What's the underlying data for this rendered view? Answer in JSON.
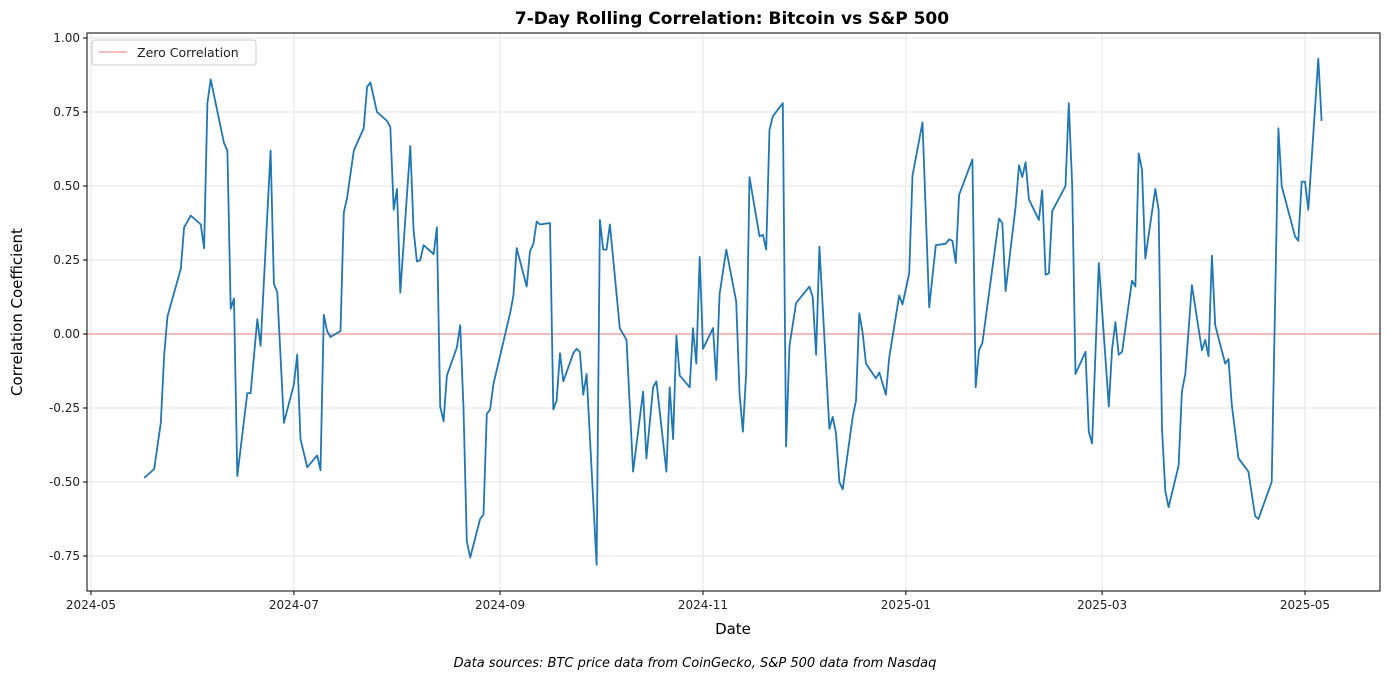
{
  "chart_data": {
    "type": "line",
    "title": "7-Day Rolling Correlation: Bitcoin vs S&P 500",
    "xlabel": "Date",
    "ylabel": "Correlation Coefficient",
    "footnote": "Data sources: BTC price data from CoinGecko, S&P 500 data from Nasdaq",
    "xlim": [
      "2024-04-29",
      "2025-05-24"
    ],
    "ylim": [
      -0.87,
      1.01
    ],
    "grid": true,
    "legend_position": "top-left",
    "x_ticks": [
      "2024-05",
      "2024-07",
      "2024-09",
      "2024-11",
      "2025-01",
      "2025-03",
      "2025-05"
    ],
    "y_ticks": [
      "1.00",
      "0.75",
      "0.50",
      "0.25",
      "0.00",
      "-0.25",
      "-0.50",
      "-0.75"
    ],
    "reference_line": {
      "name": "Zero Correlation",
      "y": 0,
      "color": "#f4a6a6"
    },
    "series": [
      {
        "color": "#1f77b4",
        "points": [
          [
            "2024-05-17",
            -0.486
          ],
          [
            "2024-05-20",
            -0.456
          ],
          [
            "2024-05-22",
            -0.3
          ],
          [
            "2024-05-23",
            -0.07
          ],
          [
            "2024-05-24",
            0.06
          ],
          [
            "2024-05-28",
            0.22
          ],
          [
            "2024-05-29",
            0.36
          ],
          [
            "2024-05-31",
            0.4
          ],
          [
            "2024-06-03",
            0.37
          ],
          [
            "2024-06-04",
            0.29
          ],
          [
            "2024-06-05",
            0.78
          ],
          [
            "2024-06-06",
            0.86
          ],
          [
            "2024-06-10",
            0.645
          ],
          [
            "2024-06-11",
            0.62
          ],
          [
            "2024-06-12",
            0.085
          ],
          [
            "2024-06-13",
            0.12
          ],
          [
            "2024-06-14",
            -0.48
          ],
          [
            "2024-06-17",
            -0.2
          ],
          [
            "2024-06-18",
            -0.2
          ],
          [
            "2024-06-20",
            0.05
          ],
          [
            "2024-06-21",
            -0.04
          ],
          [
            "2024-06-24",
            0.62
          ],
          [
            "2024-06-25",
            0.17
          ],
          [
            "2024-06-26",
            0.14
          ],
          [
            "2024-06-28",
            -0.3
          ],
          [
            "2024-07-01",
            -0.17
          ],
          [
            "2024-07-02",
            -0.07
          ],
          [
            "2024-07-03",
            -0.355
          ],
          [
            "2024-07-05",
            -0.45
          ],
          [
            "2024-07-08",
            -0.41
          ],
          [
            "2024-07-09",
            -0.46
          ],
          [
            "2024-07-10",
            0.065
          ],
          [
            "2024-07-11",
            0.01
          ],
          [
            "2024-07-12",
            -0.01
          ],
          [
            "2024-07-15",
            0.01
          ],
          [
            "2024-07-16",
            0.41
          ],
          [
            "2024-07-17",
            0.46
          ],
          [
            "2024-07-19",
            0.62
          ],
          [
            "2024-07-22",
            0.695
          ],
          [
            "2024-07-23",
            0.835
          ],
          [
            "2024-07-24",
            0.85
          ],
          [
            "2024-07-26",
            0.75
          ],
          [
            "2024-07-29",
            0.72
          ],
          [
            "2024-07-30",
            0.7
          ],
          [
            "2024-07-31",
            0.42
          ],
          [
            "2024-08-01",
            0.49
          ],
          [
            "2024-08-02",
            0.14
          ],
          [
            "2024-08-05",
            0.635
          ],
          [
            "2024-08-06",
            0.35
          ],
          [
            "2024-08-07",
            0.245
          ],
          [
            "2024-08-08",
            0.25
          ],
          [
            "2024-08-09",
            0.3
          ],
          [
            "2024-08-12",
            0.27
          ],
          [
            "2024-08-13",
            0.36
          ],
          [
            "2024-08-14",
            -0.245
          ],
          [
            "2024-08-15",
            -0.295
          ],
          [
            "2024-08-16",
            -0.14
          ],
          [
            "2024-08-19",
            -0.045
          ],
          [
            "2024-08-20",
            0.03
          ],
          [
            "2024-08-21",
            -0.25
          ],
          [
            "2024-08-22",
            -0.7
          ],
          [
            "2024-08-23",
            -0.755
          ],
          [
            "2024-08-26",
            -0.625
          ],
          [
            "2024-08-27",
            -0.61
          ],
          [
            "2024-08-28",
            -0.27
          ],
          [
            "2024-08-29",
            -0.255
          ],
          [
            "2024-08-30",
            -0.17
          ],
          [
            "2024-09-04",
            0.07
          ],
          [
            "2024-09-05",
            0.13
          ],
          [
            "2024-09-06",
            0.29
          ],
          [
            "2024-09-09",
            0.16
          ],
          [
            "2024-09-10",
            0.28
          ],
          [
            "2024-09-11",
            0.305
          ],
          [
            "2024-09-12",
            0.38
          ],
          [
            "2024-09-13",
            0.37
          ],
          [
            "2024-09-16",
            0.375
          ],
          [
            "2024-09-17",
            -0.255
          ],
          [
            "2024-09-18",
            -0.225
          ],
          [
            "2024-09-19",
            -0.065
          ],
          [
            "2024-09-20",
            -0.16
          ],
          [
            "2024-09-23",
            -0.065
          ],
          [
            "2024-09-24",
            -0.05
          ],
          [
            "2024-09-25",
            -0.06
          ],
          [
            "2024-09-26",
            -0.205
          ],
          [
            "2024-09-27",
            -0.135
          ],
          [
            "2024-09-30",
            -0.78
          ],
          [
            "2024-10-01",
            0.385
          ],
          [
            "2024-10-02",
            0.285
          ],
          [
            "2024-10-03",
            0.285
          ],
          [
            "2024-10-04",
            0.37
          ],
          [
            "2024-10-07",
            0.02
          ],
          [
            "2024-10-09",
            -0.02
          ],
          [
            "2024-10-11",
            -0.465
          ],
          [
            "2024-10-14",
            -0.195
          ],
          [
            "2024-10-15",
            -0.42
          ],
          [
            "2024-10-17",
            -0.18
          ],
          [
            "2024-10-18",
            -0.16
          ],
          [
            "2024-10-21",
            -0.465
          ],
          [
            "2024-10-22",
            -0.18
          ],
          [
            "2024-10-23",
            -0.355
          ],
          [
            "2024-10-24",
            -0.005
          ],
          [
            "2024-10-25",
            -0.14
          ],
          [
            "2024-10-28",
            -0.18
          ],
          [
            "2024-10-29",
            0.02
          ],
          [
            "2024-10-30",
            -0.1
          ],
          [
            "2024-10-31",
            0.26
          ],
          [
            "2024-11-01",
            -0.05
          ],
          [
            "2024-11-04",
            0.02
          ],
          [
            "2024-11-05",
            -0.155
          ],
          [
            "2024-11-06",
            0.135
          ],
          [
            "2024-11-08",
            0.285
          ],
          [
            "2024-11-11",
            0.11
          ],
          [
            "2024-11-12",
            -0.205
          ],
          [
            "2024-11-13",
            -0.33
          ],
          [
            "2024-11-14",
            -0.13
          ],
          [
            "2024-11-15",
            0.53
          ],
          [
            "2024-11-18",
            0.33
          ],
          [
            "2024-11-19",
            0.335
          ],
          [
            "2024-11-20",
            0.285
          ],
          [
            "2024-11-21",
            0.69
          ],
          [
            "2024-11-22",
            0.735
          ],
          [
            "2024-11-25",
            0.78
          ],
          [
            "2024-11-26",
            -0.38
          ],
          [
            "2024-11-27",
            -0.04
          ],
          [
            "2024-11-29",
            0.105
          ],
          [
            "2024-12-03",
            0.16
          ],
          [
            "2024-12-04",
            0.125
          ],
          [
            "2024-12-05",
            -0.07
          ],
          [
            "2024-12-06",
            0.295
          ],
          [
            "2024-12-09",
            -0.32
          ],
          [
            "2024-12-10",
            -0.28
          ],
          [
            "2024-12-11",
            -0.335
          ],
          [
            "2024-12-12",
            -0.5
          ],
          [
            "2024-12-13",
            -0.525
          ],
          [
            "2024-12-16",
            -0.28
          ],
          [
            "2024-12-17",
            -0.225
          ],
          [
            "2024-12-18",
            0.07
          ],
          [
            "2024-12-19",
            0.005
          ],
          [
            "2024-12-20",
            -0.1
          ],
          [
            "2024-12-23",
            -0.15
          ],
          [
            "2024-12-24",
            -0.13
          ],
          [
            "2024-12-26",
            -0.205
          ],
          [
            "2024-12-27",
            -0.08
          ],
          [
            "2024-12-30",
            0.13
          ],
          [
            "2024-12-31",
            0.1
          ],
          [
            "2025-01-02",
            0.205
          ],
          [
            "2025-01-03",
            0.535
          ],
          [
            "2025-01-06",
            0.715
          ],
          [
            "2025-01-08",
            0.09
          ],
          [
            "2025-01-10",
            0.3
          ],
          [
            "2025-01-13",
            0.305
          ],
          [
            "2025-01-14",
            0.32
          ],
          [
            "2025-01-15",
            0.315
          ],
          [
            "2025-01-16",
            0.24
          ],
          [
            "2025-01-17",
            0.47
          ],
          [
            "2025-01-21",
            0.59
          ],
          [
            "2025-01-22",
            -0.18
          ],
          [
            "2025-01-23",
            -0.055
          ],
          [
            "2025-01-24",
            -0.03
          ],
          [
            "2025-01-29",
            0.39
          ],
          [
            "2025-01-30",
            0.375
          ],
          [
            "2025-01-31",
            0.145
          ],
          [
            "2025-02-03",
            0.43
          ],
          [
            "2025-02-04",
            0.57
          ],
          [
            "2025-02-05",
            0.53
          ],
          [
            "2025-02-06",
            0.58
          ],
          [
            "2025-02-07",
            0.455
          ],
          [
            "2025-02-10",
            0.385
          ],
          [
            "2025-02-11",
            0.485
          ],
          [
            "2025-02-12",
            0.2
          ],
          [
            "2025-02-13",
            0.205
          ],
          [
            "2025-02-14",
            0.415
          ],
          [
            "2025-02-18",
            0.5
          ],
          [
            "2025-02-19",
            0.78
          ],
          [
            "2025-02-20",
            0.5
          ],
          [
            "2025-02-21",
            -0.135
          ],
          [
            "2025-02-24",
            -0.06
          ],
          [
            "2025-02-25",
            -0.33
          ],
          [
            "2025-02-26",
            -0.37
          ],
          [
            "2025-02-28",
            0.24
          ],
          [
            "2025-03-03",
            -0.245
          ],
          [
            "2025-03-04",
            -0.05
          ],
          [
            "2025-03-05",
            0.04
          ],
          [
            "2025-03-06",
            -0.07
          ],
          [
            "2025-03-07",
            -0.06
          ],
          [
            "2025-03-10",
            0.18
          ],
          [
            "2025-03-11",
            0.16
          ],
          [
            "2025-03-12",
            0.61
          ],
          [
            "2025-03-13",
            0.555
          ],
          [
            "2025-03-14",
            0.255
          ],
          [
            "2025-03-17",
            0.49
          ],
          [
            "2025-03-18",
            0.42
          ],
          [
            "2025-03-19",
            -0.32
          ],
          [
            "2025-03-20",
            -0.53
          ],
          [
            "2025-03-21",
            -0.585
          ],
          [
            "2025-03-24",
            -0.445
          ],
          [
            "2025-03-25",
            -0.195
          ],
          [
            "2025-03-26",
            -0.135
          ],
          [
            "2025-03-28",
            0.165
          ],
          [
            "2025-03-31",
            -0.055
          ],
          [
            "2025-04-01",
            -0.02
          ],
          [
            "2025-04-02",
            -0.075
          ],
          [
            "2025-04-03",
            0.265
          ],
          [
            "2025-04-04",
            0.03
          ],
          [
            "2025-04-07",
            -0.1
          ],
          [
            "2025-04-08",
            -0.085
          ],
          [
            "2025-04-09",
            -0.24
          ],
          [
            "2025-04-11",
            -0.42
          ],
          [
            "2025-04-14",
            -0.465
          ],
          [
            "2025-04-16",
            -0.615
          ],
          [
            "2025-04-17",
            -0.625
          ],
          [
            "2025-04-21",
            -0.5
          ],
          [
            "2025-04-23",
            0.695
          ],
          [
            "2025-04-24",
            0.5
          ],
          [
            "2025-04-28",
            0.33
          ],
          [
            "2025-04-29",
            0.315
          ],
          [
            "2025-04-30",
            0.515
          ],
          [
            "2025-05-01",
            0.515
          ],
          [
            "2025-05-02",
            0.42
          ],
          [
            "2025-05-05",
            0.93
          ],
          [
            "2025-05-06",
            0.72
          ]
        ]
      }
    ]
  }
}
